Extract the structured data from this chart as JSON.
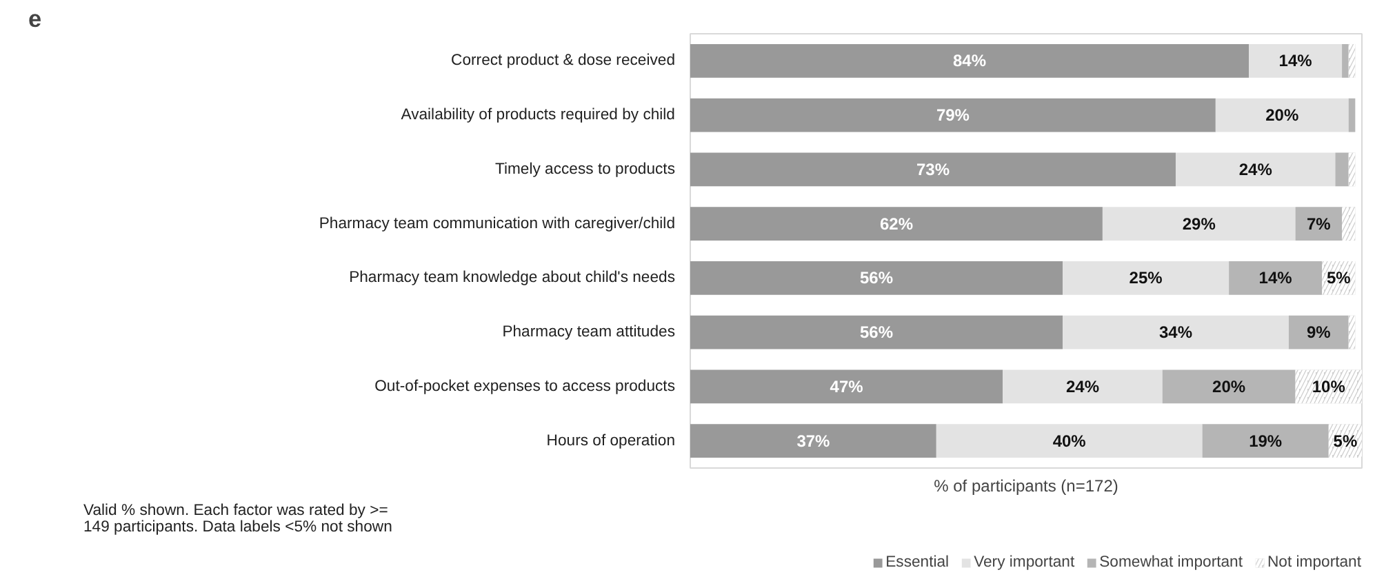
{
  "chart_data": {
    "type": "bar",
    "orientation": "horizontal",
    "stacked": true,
    "title": "e",
    "xlabel": "% of participants (n=172)",
    "categories": [
      "Correct product & dose received",
      "Availability of products required by child",
      "Timely access to products",
      "Pharmacy team communication with caregiver/child",
      "Pharmacy team knowledge about child's needs",
      "Pharmacy team attitudes",
      "Out-of-pocket expenses to access products",
      "Hours of operation"
    ],
    "series": [
      {
        "name": "Essential",
        "color": "#999999",
        "values": [
          84,
          79,
          73,
          62,
          56,
          56,
          47,
          37
        ],
        "value_labels": [
          "84%",
          "79%",
          "73%",
          "62%",
          "56%",
          "56%",
          "47%",
          "37%"
        ]
      },
      {
        "name": "Very important",
        "color": "#e3e3e3",
        "values": [
          14,
          20,
          24,
          29,
          25,
          34,
          24,
          40
        ],
        "value_labels": [
          "14%",
          "20%",
          "24%",
          "29%",
          "25%",
          "34%",
          "24%",
          "40%"
        ]
      },
      {
        "name": "Somewhat important",
        "color": "#b5b5b5",
        "values": [
          1,
          1,
          2,
          7,
          14,
          9,
          20,
          19
        ],
        "value_labels": [
          null,
          null,
          null,
          "7%",
          "14%",
          "9%",
          "20%",
          "19%"
        ]
      },
      {
        "name": "Not important",
        "color": "#d0d0d0",
        "values": [
          1,
          0,
          1,
          2,
          5,
          1,
          10,
          5
        ],
        "value_labels": [
          null,
          null,
          null,
          null,
          "5%",
          null,
          "10%",
          "5%"
        ]
      }
    ],
    "xlim": [
      0,
      101
    ],
    "tick_labels": "y",
    "grid": false,
    "legend": "bottom right",
    "annotations": [
      "Valid % shown. Each factor was rated by >=\n149 participants. Data labels <5% not shown"
    ]
  }
}
